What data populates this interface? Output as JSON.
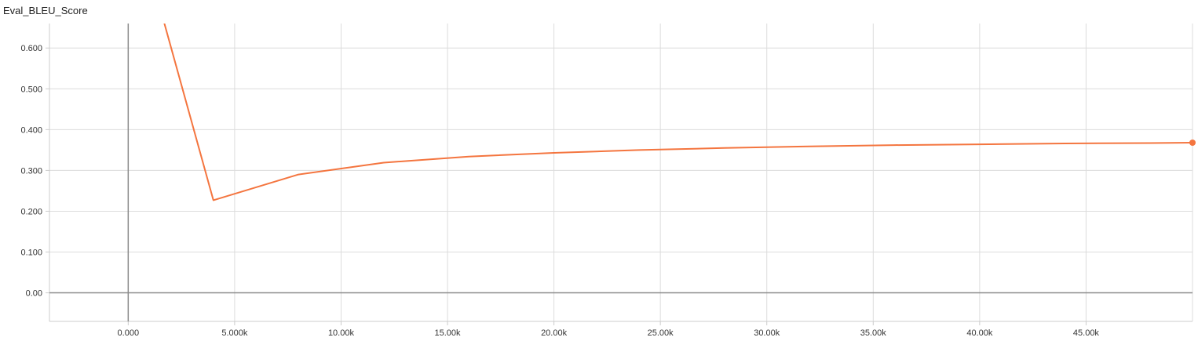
{
  "chart_data": {
    "type": "line",
    "title": "Eval_BLEU_Score",
    "x_ticks": [
      {
        "value": 0,
        "label": "0.000"
      },
      {
        "value": 5000,
        "label": "5.000k"
      },
      {
        "value": 10000,
        "label": "10.00k"
      },
      {
        "value": 15000,
        "label": "15.00k"
      },
      {
        "value": 20000,
        "label": "20.00k"
      },
      {
        "value": 25000,
        "label": "25.00k"
      },
      {
        "value": 30000,
        "label": "30.00k"
      },
      {
        "value": 35000,
        "label": "35.00k"
      },
      {
        "value": 40000,
        "label": "40.00k"
      },
      {
        "value": 45000,
        "label": "45.00k"
      }
    ],
    "y_ticks": [
      {
        "value": 0.0,
        "label": "0.00"
      },
      {
        "value": 0.1,
        "label": "0.100"
      },
      {
        "value": 0.2,
        "label": "0.200"
      },
      {
        "value": 0.3,
        "label": "0.300"
      },
      {
        "value": 0.4,
        "label": "0.400"
      },
      {
        "value": 0.5,
        "label": "0.500"
      },
      {
        "value": 0.6,
        "label": "0.600"
      }
    ],
    "xlim": [
      -3700,
      50000
    ],
    "ylim": [
      -0.07,
      0.66
    ],
    "grid": true,
    "series": [
      {
        "color": "#f4753f",
        "x": [
          0,
          4000,
          8000,
          12000,
          16000,
          20000,
          24000,
          28000,
          32000,
          36000,
          40000,
          44000,
          48000,
          50000
        ],
        "y": [
          0.98,
          0.227,
          0.29,
          0.319,
          0.334,
          0.343,
          0.35,
          0.355,
          0.359,
          0.362,
          0.364,
          0.366,
          0.367,
          0.368
        ]
      }
    ]
  }
}
